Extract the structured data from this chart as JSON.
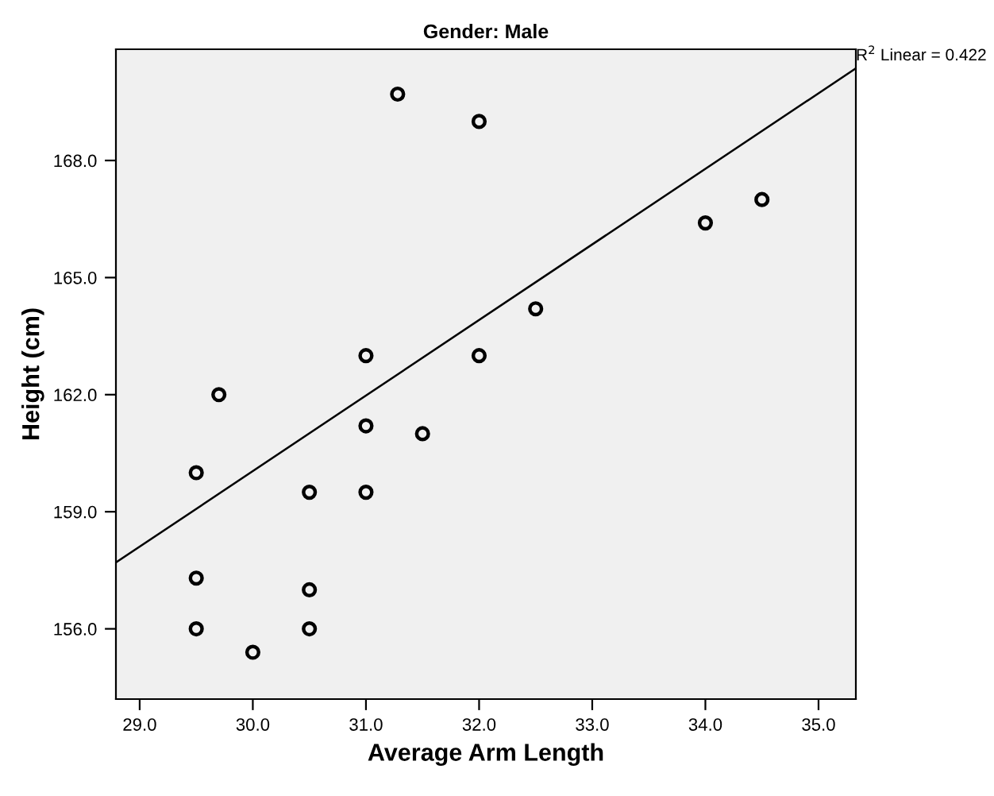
{
  "chart_data": {
    "type": "scatter",
    "title": "Gender: Male",
    "xlabel": "Average Arm Length",
    "ylabel": "Height (cm)",
    "xlim": [
      28.79,
      35.33
    ],
    "ylim": [
      154.2,
      170.85
    ],
    "xticks": [
      {
        "value": 29,
        "label": "29.0"
      },
      {
        "value": 30,
        "label": "30.0"
      },
      {
        "value": 31,
        "label": "31.0"
      },
      {
        "value": 32,
        "label": "32.0"
      },
      {
        "value": 33,
        "label": "33.0"
      },
      {
        "value": 34,
        "label": "34.0"
      },
      {
        "value": 35,
        "label": "35.0"
      }
    ],
    "yticks": [
      {
        "value": 156,
        "label": "156.0"
      },
      {
        "value": 159,
        "label": "159.0"
      },
      {
        "value": 162,
        "label": "162.0"
      },
      {
        "value": 165,
        "label": "165.0"
      },
      {
        "value": 168,
        "label": "168.0"
      }
    ],
    "grid": false,
    "legend": false,
    "series": [
      {
        "marker": "circle",
        "color": "#000000",
        "x": [
          31.28,
          32.0,
          34.0,
          34.5,
          32.5,
          31.0,
          32.0,
          29.7,
          31.0,
          31.5,
          29.5,
          30.5,
          31.0,
          29.5,
          30.5,
          29.5,
          30.5,
          30.0
        ],
        "values": [
          169.7,
          169.0,
          166.4,
          167.0,
          164.2,
          163.0,
          163.0,
          162.0,
          161.2,
          161.0,
          160.0,
          159.5,
          159.5,
          157.3,
          157.0,
          156.0,
          156.0,
          155.4
        ]
      },
      {
        "type": "line",
        "color": "#000000",
        "x": [
          28.79,
          35.33
        ],
        "values": [
          157.7,
          170.36
        ]
      }
    ],
    "annotations": [
      {
        "text": "R$^{2}$ Linear = 0.422",
        "x": 35.33,
        "y": 170.36
      }
    ]
  }
}
